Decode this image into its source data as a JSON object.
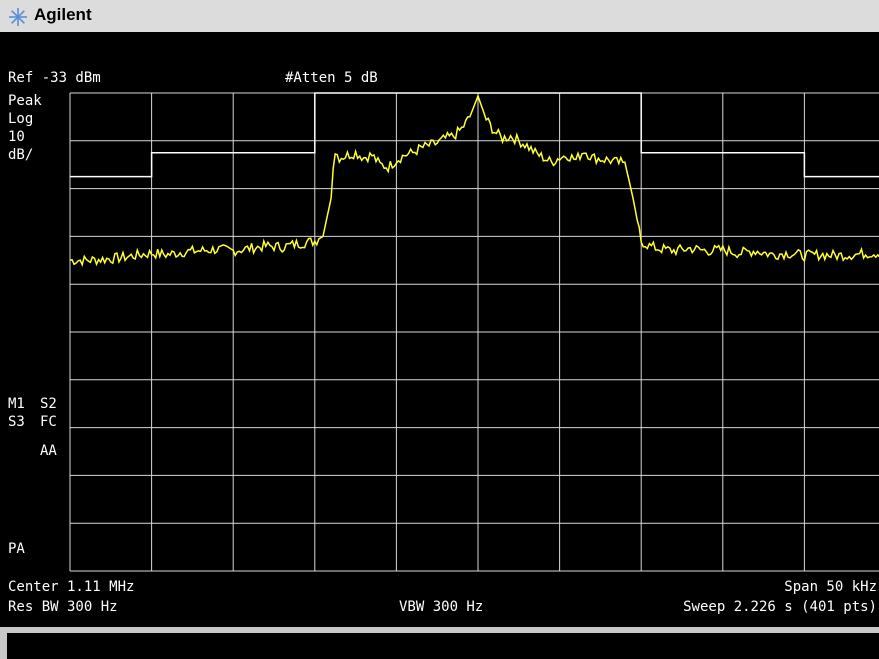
{
  "app": {
    "brand": "Agilent",
    "logo_icon": "agilent-spark-icon"
  },
  "colors": {
    "trace": "#ffff33",
    "limit": "#ffffff",
    "grid": "#d8d8d8",
    "background": "#000000"
  },
  "header": {
    "ref_level": "Ref -33 dBm",
    "attenuation": "#Atten 5 dB"
  },
  "left_annotations": {
    "detector": "Peak",
    "scale_type": "Log",
    "scale_value": "10",
    "scale_unit": "dB/",
    "marker_m1": "M1",
    "marker_s2": "S2",
    "marker_s3": "S3",
    "marker_fc": "FC",
    "marker_aa": "AA",
    "pa": "PA"
  },
  "footer": {
    "center": "Center 1.11 MHz",
    "span": "Span 50 kHz",
    "res_bw": "Res BW 300 Hz",
    "vbw": "VBW 300 Hz",
    "sweep": "Sweep 2.226 s (401 pts)"
  },
  "chart_data": {
    "type": "line",
    "x_label": "",
    "y_label": "",
    "x": {
      "center_mhz": 1.11,
      "span_khz": 50,
      "points": 401
    },
    "y": {
      "ref_dbm": -33,
      "db_per_div": 10,
      "divisions": 10
    },
    "grid": true,
    "series": [
      {
        "key": "trace",
        "points": [
          [
            -25.0,
            -68.0
          ],
          [
            -24.0,
            -68.0
          ],
          [
            -23.0,
            -67.8
          ],
          [
            -22.0,
            -67.5
          ],
          [
            -21.0,
            -67.0
          ],
          [
            -20.0,
            -66.5
          ],
          [
            -19.0,
            -66.8
          ],
          [
            -18.0,
            -66.2
          ],
          [
            -17.0,
            -66.0
          ],
          [
            -16.0,
            -65.7
          ],
          [
            -15.0,
            -66.0
          ],
          [
            -14.0,
            -65.5
          ],
          [
            -13.0,
            -65.0
          ],
          [
            -12.0,
            -65.2
          ],
          [
            -11.0,
            -64.5
          ],
          [
            -10.0,
            -64.0
          ],
          [
            -9.5,
            -63.0
          ],
          [
            -9.0,
            -55.0
          ],
          [
            -8.8,
            -45.0
          ],
          [
            -8.5,
            -46.5
          ],
          [
            -8.0,
            -46.0
          ],
          [
            -7.5,
            -45.5
          ],
          [
            -7.0,
            -46.5
          ],
          [
            -6.5,
            -46.0
          ],
          [
            -6.0,
            -48.0
          ],
          [
            -5.5,
            -48.5
          ],
          [
            -5.0,
            -47.0
          ],
          [
            -4.5,
            -46.0
          ],
          [
            -4.0,
            -45.5
          ],
          [
            -3.5,
            -44.5
          ],
          [
            -3.0,
            -44.0
          ],
          [
            -2.5,
            -43.5
          ],
          [
            -2.0,
            -42.5
          ],
          [
            -1.5,
            -42.0
          ],
          [
            -1.0,
            -40.5
          ],
          [
            -0.5,
            -38.0
          ],
          [
            0.0,
            -33.6
          ],
          [
            0.5,
            -38.5
          ],
          [
            1.0,
            -41.0
          ],
          [
            1.5,
            -42.5
          ],
          [
            2.0,
            -42.0
          ],
          [
            2.5,
            -43.0
          ],
          [
            3.0,
            -44.0
          ],
          [
            3.5,
            -45.5
          ],
          [
            4.0,
            -46.5
          ],
          [
            4.5,
            -47.5
          ],
          [
            5.0,
            -46.5
          ],
          [
            5.5,
            -46.0
          ],
          [
            6.0,
            -47.0
          ],
          [
            6.5,
            -45.0
          ],
          [
            7.0,
            -46.5
          ],
          [
            7.5,
            -46.8
          ],
          [
            8.0,
            -47.0
          ],
          [
            8.5,
            -47.5
          ],
          [
            9.0,
            -47.5
          ],
          [
            9.5,
            -55.0
          ],
          [
            10.0,
            -64.0
          ],
          [
            10.5,
            -65.0
          ],
          [
            11.0,
            -65.5
          ],
          [
            12.0,
            -66.0
          ],
          [
            13.0,
            -65.5
          ],
          [
            14.0,
            -66.0
          ],
          [
            15.0,
            -65.8
          ],
          [
            16.0,
            -66.5
          ],
          [
            17.0,
            -66.0
          ],
          [
            18.0,
            -66.8
          ],
          [
            19.0,
            -66.5
          ],
          [
            20.0,
            -67.0
          ],
          [
            21.0,
            -66.8
          ],
          [
            22.0,
            -67.0
          ],
          [
            23.0,
            -66.8
          ],
          [
            24.0,
            -66.5
          ],
          [
            25.0,
            -66.5
          ]
        ]
      },
      {
        "key": "limit",
        "points": [
          [
            -25.0,
            -50.5
          ],
          [
            -20.0,
            -50.5
          ],
          [
            -20.0,
            -45.5
          ],
          [
            -10.0,
            -45.5
          ],
          [
            -10.0,
            -33.0
          ],
          [
            10.0,
            -33.0
          ],
          [
            10.0,
            -45.5
          ],
          [
            20.0,
            -45.5
          ],
          [
            20.0,
            -50.5
          ],
          [
            25.0,
            -50.5
          ]
        ]
      }
    ]
  }
}
